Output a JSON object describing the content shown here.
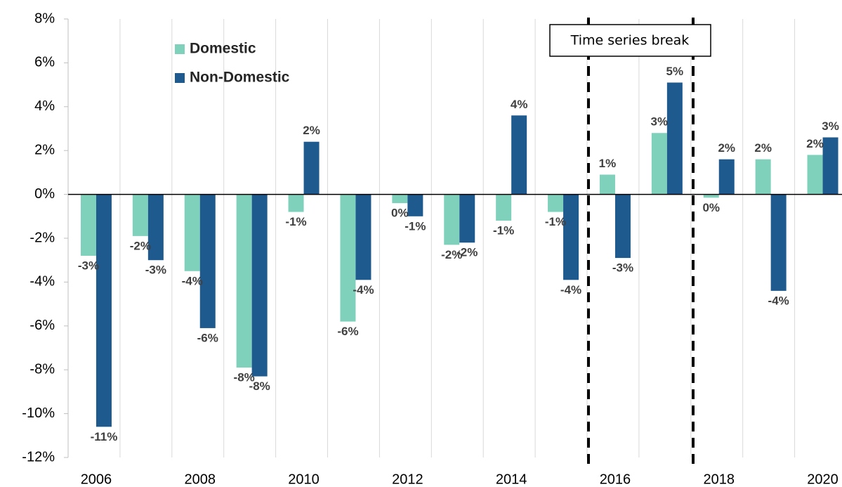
{
  "chart_data": {
    "type": "bar",
    "categories": [
      "2006",
      null,
      "2008",
      null,
      "2010",
      null,
      "2012",
      null,
      "2014",
      null,
      "2016",
      null,
      "2018",
      null,
      "2020"
    ],
    "series": [
      {
        "name": "Domestic",
        "color": "#7fd1bc",
        "values": [
          -2.8,
          -1.9,
          -3.5,
          -7.9,
          -0.8,
          -5.8,
          -0.4,
          -2.3,
          -1.2,
          -0.8,
          0.9,
          2.8,
          -0.15,
          1.6,
          1.8
        ],
        "value_labels": [
          "-3%",
          "-2%",
          "-4%",
          "-8%",
          "-1%",
          "-6%",
          "0%",
          "-2%",
          "-1%",
          "-1%",
          "1%",
          "3%",
          "0%",
          "2%",
          "2%"
        ]
      },
      {
        "name": "Non-Domestic",
        "color": "#1f5a8f",
        "values": [
          -10.6,
          -3.0,
          -6.1,
          -8.3,
          2.4,
          -3.9,
          -1.0,
          -2.2,
          3.6,
          -3.9,
          -2.9,
          5.1,
          1.6,
          -4.4,
          2.6
        ],
        "value_labels": [
          "-11%",
          "-3%",
          "-6%",
          "-8%",
          "2%",
          "-4%",
          "-1%",
          "-2%",
          "4%",
          "-4%",
          "-3%",
          "5%",
          "2%",
          "-4%",
          "3%"
        ]
      }
    ],
    "ylim": [
      -12,
      8
    ],
    "yticks": [
      {
        "value": -12,
        "label": "-12%"
      },
      {
        "value": -10,
        "label": "-10%"
      },
      {
        "value": -8,
        "label": "-8%"
      },
      {
        "value": -6,
        "label": "-6%"
      },
      {
        "value": -4,
        "label": "-4%"
      },
      {
        "value": -2,
        "label": "-2%"
      },
      {
        "value": 0,
        "label": "0%"
      },
      {
        "value": 2,
        "label": "2%"
      },
      {
        "value": 4,
        "label": "4%"
      },
      {
        "value": 6,
        "label": "6%"
      },
      {
        "value": 8,
        "label": "8%"
      }
    ],
    "annotation": "Time series break",
    "legend": "upper left",
    "grid": true
  }
}
